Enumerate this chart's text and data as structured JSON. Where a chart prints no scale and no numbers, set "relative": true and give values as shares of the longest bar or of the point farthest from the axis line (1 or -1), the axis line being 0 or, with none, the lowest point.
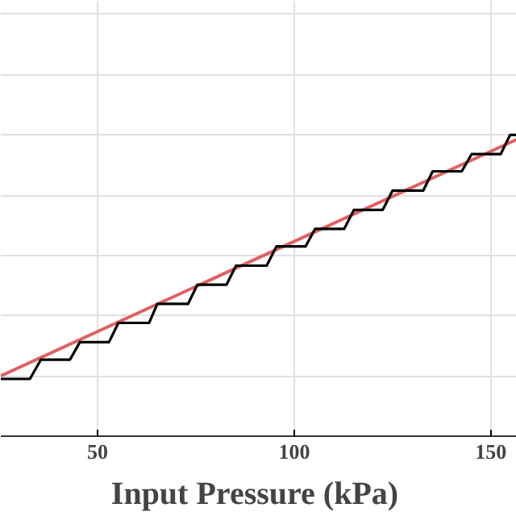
{
  "chart_data": {
    "type": "line",
    "xlabel": "Input Pressure  (kPa)",
    "relative": true,
    "xlim": [
      25.4,
      156.6
    ],
    "xticks": [
      50,
      100,
      150
    ],
    "grid": true,
    "tick_labels": "x",
    "series": [
      {
        "color": "#e06060",
        "x": [
          25.4,
          156.6
        ],
        "values": [
          0.2,
          0.985
        ]
      },
      {
        "type": "step",
        "color": "#000000",
        "x": [
          25.4,
          32.8,
          35.6,
          43.0,
          45.5,
          52.9,
          55.3,
          63.1,
          65.2,
          73.0,
          75.4,
          82.8,
          85.2,
          93.0,
          95.5,
          102.9,
          105.3,
          112.7,
          115.2,
          122.5,
          125.0,
          132.8,
          135.2,
          142.6,
          145.1,
          152.5,
          154.9,
          156.6
        ],
        "values": [
          0.19,
          0.19,
          0.254,
          0.254,
          0.312,
          0.312,
          0.376,
          0.376,
          0.439,
          0.439,
          0.503,
          0.503,
          0.566,
          0.566,
          0.63,
          0.63,
          0.688,
          0.688,
          0.751,
          0.751,
          0.815,
          0.815,
          0.879,
          0.879,
          0.936,
          0.936,
          1.0,
          1.0
        ]
      }
    ]
  }
}
